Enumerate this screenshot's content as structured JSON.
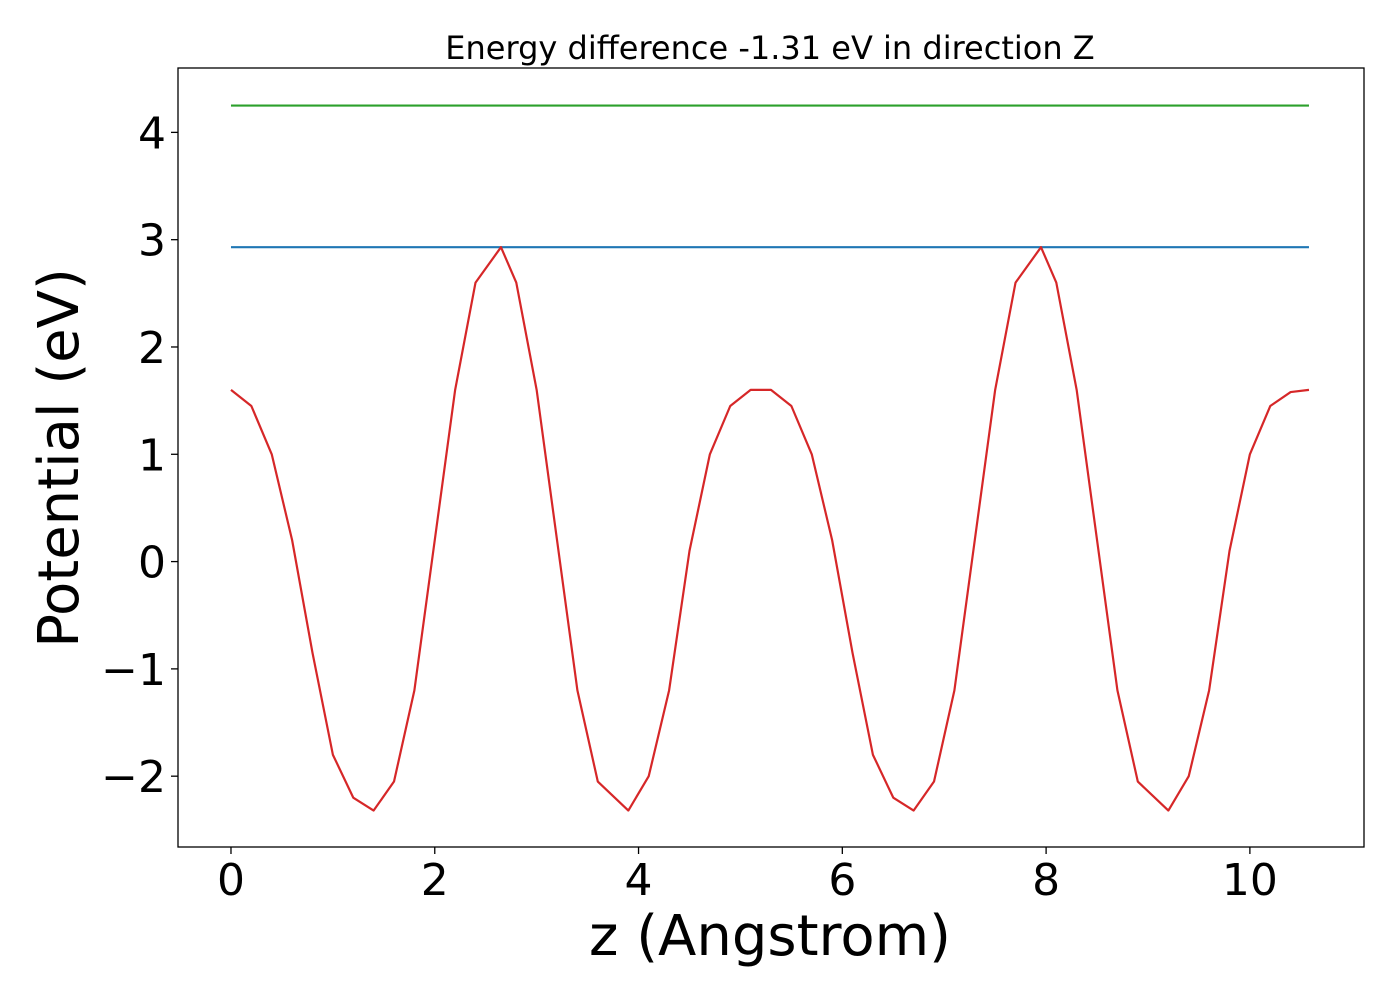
{
  "chart_data": {
    "type": "line",
    "title": "Energy difference -1.31 eV in direction Z",
    "xlabel": "z (Angstrom)",
    "ylabel": "Potential (eV)",
    "xlim": [
      -0.52,
      11.12
    ],
    "ylim": [
      -2.66,
      4.6
    ],
    "xticks": [
      0,
      2,
      4,
      6,
      8,
      10
    ],
    "xtick_labels": [
      "0",
      "2",
      "4",
      "6",
      "8",
      "10"
    ],
    "yticks": [
      -2,
      -1,
      0,
      1,
      2,
      3,
      4
    ],
    "ytick_labels": [
      "−2",
      "−1",
      "0",
      "1",
      "2",
      "3",
      "4"
    ],
    "grid": false,
    "legend": "none",
    "series": [
      {
        "color": "#2ca02c",
        "x": [
          0,
          10.58
        ],
        "y": [
          4.25,
          4.25
        ]
      },
      {
        "color": "#1f77b4",
        "x": [
          0,
          10.58
        ],
        "y": [
          2.93,
          2.93
        ]
      },
      {
        "color": "#d62728",
        "x": [
          0,
          0.2,
          0.4,
          0.6,
          0.8,
          1.0,
          1.2,
          1.4,
          1.6,
          1.8,
          2.0,
          2.2,
          2.4,
          2.65,
          2.8,
          3.0,
          3.2,
          3.4,
          3.6,
          3.9,
          4.1,
          4.3,
          4.5,
          4.7,
          4.9,
          5.1,
          5.3,
          5.5,
          5.7,
          5.9,
          6.1,
          6.3,
          6.5,
          6.7,
          6.9,
          7.1,
          7.3,
          7.5,
          7.7,
          7.95,
          8.1,
          8.3,
          8.5,
          8.7,
          8.9,
          9.2,
          9.4,
          9.6,
          9.8,
          10.0,
          10.2,
          10.4,
          10.58
        ],
        "y": [
          1.6,
          1.45,
          1.0,
          0.2,
          -0.85,
          -1.8,
          -2.2,
          -2.32,
          -2.05,
          -1.2,
          0.2,
          1.6,
          2.6,
          2.93,
          2.6,
          1.6,
          0.2,
          -1.2,
          -2.05,
          -2.32,
          -2.0,
          -1.2,
          0.1,
          1.0,
          1.45,
          1.6,
          1.6,
          1.45,
          1.0,
          0.2,
          -0.85,
          -1.8,
          -2.2,
          -2.32,
          -2.05,
          -1.2,
          0.2,
          1.6,
          2.6,
          2.93,
          2.6,
          1.6,
          0.2,
          -1.2,
          -2.05,
          -2.32,
          -2.0,
          -1.2,
          0.1,
          1.0,
          1.45,
          1.58,
          1.6
        ]
      }
    ]
  }
}
